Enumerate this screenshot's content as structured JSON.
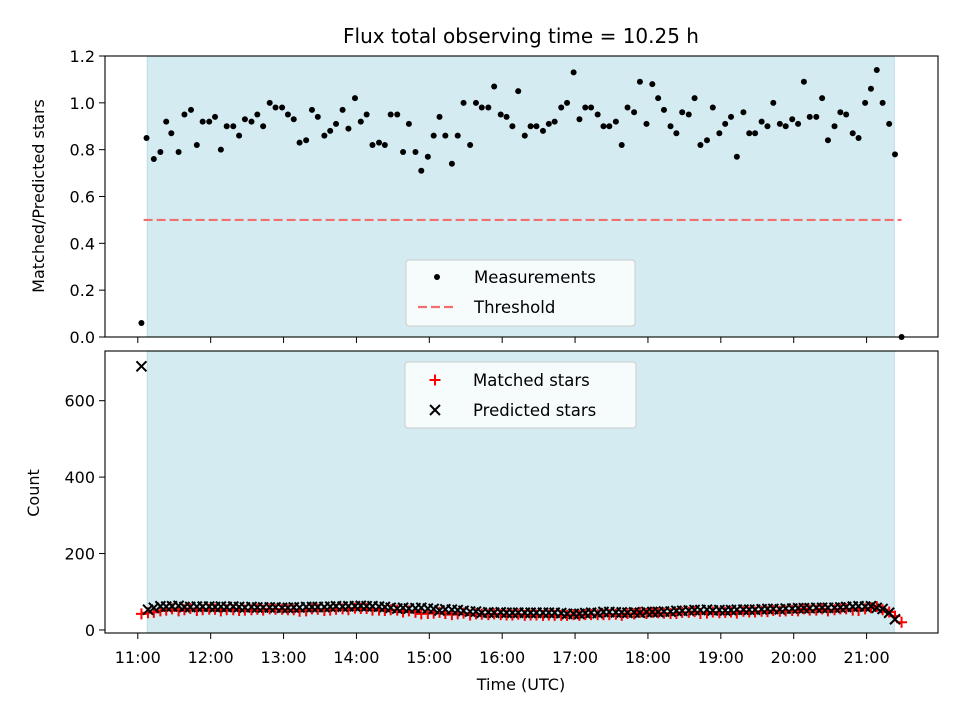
{
  "chart_data": {
    "type": "scatter",
    "title": "Flux total observing time = 10.25 h",
    "xlabel": "Time (UTC)",
    "x_ticks": [
      "11:00",
      "12:00",
      "13:00",
      "14:00",
      "15:00",
      "16:00",
      "17:00",
      "18:00",
      "19:00",
      "20:00",
      "21:00"
    ],
    "x_range_hours": [
      10.55,
      21.98
    ],
    "observing_window_hours": [
      11.13,
      21.38
    ],
    "shade_color": "#d3ebf1",
    "top_panel": {
      "ylabel": "Matched/Predicted stars",
      "ylim": [
        0,
        1.2
      ],
      "y_ticks": [
        "0.0",
        "0.2",
        "0.4",
        "0.6",
        "0.8",
        "1.0",
        "1.2"
      ],
      "threshold": {
        "name": "Threshold",
        "value": 0.5,
        "color": "#f07070",
        "x_range_hours": [
          11.08,
          21.48
        ]
      },
      "legend": {
        "placement": "lower-center",
        "entries": [
          "Measurements",
          "Threshold"
        ]
      },
      "measurements": {
        "name": "Measurements",
        "color": "#000000",
        "x_hours": [
          11.05,
          11.12,
          11.22,
          11.31,
          11.39,
          11.46,
          11.56,
          11.64,
          11.73,
          11.81,
          11.89,
          11.98,
          12.06,
          12.14,
          12.22,
          12.31,
          12.39,
          12.47,
          12.56,
          12.64,
          12.72,
          12.81,
          12.89,
          12.98,
          13.06,
          13.14,
          13.22,
          13.31,
          13.39,
          13.47,
          13.56,
          13.64,
          13.72,
          13.81,
          13.89,
          13.98,
          14.06,
          14.14,
          14.22,
          14.31,
          14.39,
          14.47,
          14.56,
          14.64,
          14.72,
          14.81,
          14.89,
          14.98,
          15.06,
          15.14,
          15.22,
          15.31,
          15.39,
          15.47,
          15.56,
          15.64,
          15.72,
          15.81,
          15.89,
          15.98,
          16.06,
          16.14,
          16.22,
          16.31,
          16.39,
          16.47,
          16.56,
          16.64,
          16.72,
          16.81,
          16.89,
          16.98,
          17.06,
          17.14,
          17.22,
          17.31,
          17.39,
          17.47,
          17.56,
          17.64,
          17.72,
          17.81,
          17.89,
          17.98,
          18.06,
          18.14,
          18.22,
          18.31,
          18.39,
          18.47,
          18.56,
          18.64,
          18.72,
          18.81,
          18.89,
          18.98,
          19.06,
          19.14,
          19.22,
          19.31,
          19.39,
          19.47,
          19.56,
          19.64,
          19.72,
          19.81,
          19.89,
          19.98,
          20.06,
          20.14,
          20.22,
          20.31,
          20.39,
          20.47,
          20.56,
          20.64,
          20.72,
          20.81,
          20.89,
          20.98,
          21.06,
          21.14,
          21.22,
          21.31,
          21.39,
          21.48
        ],
        "y": [
          0.06,
          0.85,
          0.76,
          0.79,
          0.92,
          0.87,
          0.79,
          0.95,
          0.97,
          0.82,
          0.92,
          0.92,
          0.94,
          0.8,
          0.9,
          0.9,
          0.86,
          0.93,
          0.92,
          0.95,
          0.9,
          1.0,
          0.98,
          0.98,
          0.95,
          0.93,
          0.83,
          0.84,
          0.97,
          0.94,
          0.86,
          0.88,
          0.91,
          0.97,
          0.89,
          1.02,
          0.92,
          0.95,
          0.82,
          0.83,
          0.82,
          0.95,
          0.95,
          0.79,
          0.91,
          0.79,
          0.71,
          0.77,
          0.86,
          0.94,
          0.86,
          0.74,
          0.86,
          1.0,
          0.82,
          1.0,
          0.98,
          0.98,
          1.07,
          0.95,
          0.94,
          0.9,
          1.05,
          0.86,
          0.9,
          0.9,
          0.88,
          0.91,
          0.92,
          0.98,
          1.0,
          1.13,
          0.93,
          0.98,
          0.98,
          0.95,
          0.9,
          0.9,
          0.92,
          0.82,
          0.98,
          0.96,
          1.09,
          0.91,
          1.08,
          1.02,
          0.97,
          0.9,
          0.87,
          0.96,
          0.95,
          1.02,
          0.82,
          0.84,
          0.98,
          0.87,
          0.91,
          0.94,
          0.77,
          0.96,
          0.87,
          0.87,
          0.92,
          0.9,
          1.0,
          0.91,
          0.9,
          0.93,
          0.91,
          1.09,
          0.94,
          0.94,
          1.02,
          0.84,
          0.9,
          0.96,
          0.95,
          0.87,
          0.85,
          1.0,
          1.06,
          1.14,
          1.0,
          0.91,
          0.78,
          0.0
        ]
      }
    },
    "bottom_panel": {
      "ylabel": "Count",
      "ylim": [
        -8,
        730
      ],
      "y_ticks": [
        "0",
        "200",
        "400",
        "600"
      ],
      "y_tick_values": [
        0,
        200,
        400,
        600
      ],
      "legend": {
        "placement": "upper-center",
        "entries": [
          "Matched stars",
          "Predicted stars"
        ]
      },
      "matched": {
        "name": "Matched stars",
        "color": "#ff0000",
        "x_hours": [
          11.05,
          11.14,
          11.22,
          11.31,
          11.39,
          11.47,
          11.56,
          11.64,
          11.72,
          11.81,
          11.89,
          11.98,
          12.06,
          12.14,
          12.22,
          12.31,
          12.39,
          12.47,
          12.56,
          12.64,
          12.72,
          12.81,
          12.89,
          12.98,
          13.06,
          13.14,
          13.22,
          13.31,
          13.39,
          13.47,
          13.56,
          13.64,
          13.72,
          13.81,
          13.89,
          13.98,
          14.06,
          14.14,
          14.22,
          14.31,
          14.39,
          14.47,
          14.56,
          14.64,
          14.72,
          14.81,
          14.89,
          14.98,
          15.06,
          15.14,
          15.22,
          15.31,
          15.39,
          15.47,
          15.56,
          15.64,
          15.72,
          15.81,
          15.89,
          15.98,
          16.06,
          16.14,
          16.22,
          16.31,
          16.39,
          16.47,
          16.56,
          16.64,
          16.72,
          16.81,
          16.89,
          16.98,
          17.06,
          17.14,
          17.22,
          17.31,
          17.39,
          17.47,
          17.56,
          17.64,
          17.72,
          17.81,
          17.89,
          17.98,
          18.06,
          18.14,
          18.22,
          18.31,
          18.39,
          18.47,
          18.56,
          18.64,
          18.72,
          18.81,
          18.89,
          18.98,
          19.06,
          19.14,
          19.22,
          19.31,
          19.39,
          19.47,
          19.56,
          19.64,
          19.72,
          19.81,
          19.89,
          19.98,
          20.06,
          20.14,
          20.22,
          20.31,
          20.39,
          20.47,
          20.56,
          20.64,
          20.72,
          20.81,
          20.89,
          20.98,
          21.06,
          21.14,
          21.22,
          21.31,
          21.39,
          21.48
        ],
        "y": [
          42,
          45,
          46,
          50,
          52,
          55,
          50,
          53,
          56,
          51,
          53,
          54,
          54,
          50,
          53,
          53,
          51,
          52,
          53,
          54,
          52,
          55,
          54,
          54,
          53,
          53,
          49,
          50,
          55,
          54,
          51,
          52,
          54,
          55,
          53,
          57,
          56,
          56,
          52,
          52,
          51,
          53,
          52,
          47,
          50,
          46,
          42,
          43,
          44,
          46,
          43,
          40,
          42,
          44,
          39,
          42,
          41,
          40,
          42,
          40,
          39,
          39,
          41,
          38,
          39,
          39,
          38,
          39,
          38,
          38,
          38,
          40,
          38,
          40,
          40,
          40,
          40,
          40,
          41,
          38,
          43,
          42,
          46,
          43,
          46,
          45,
          44,
          43,
          43,
          46,
          46,
          48,
          43,
          44,
          47,
          45,
          46,
          47,
          44,
          49,
          47,
          47,
          49,
          48,
          51,
          49,
          50,
          51,
          50,
          55,
          52,
          52,
          55,
          50,
          53,
          55,
          55,
          52,
          51,
          55,
          58,
          61,
          53,
          47,
          36,
          20
        ]
      },
      "predicted": {
        "name": "Predicted stars",
        "color": "#000000",
        "x_hours": [
          11.05,
          11.14,
          11.22,
          11.31,
          11.39,
          11.47,
          11.56,
          11.64,
          11.72,
          11.81,
          11.89,
          11.98,
          12.06,
          12.14,
          12.22,
          12.31,
          12.39,
          12.47,
          12.56,
          12.64,
          12.72,
          12.81,
          12.89,
          12.98,
          13.06,
          13.14,
          13.22,
          13.31,
          13.39,
          13.47,
          13.56,
          13.64,
          13.72,
          13.81,
          13.89,
          13.98,
          14.06,
          14.14,
          14.22,
          14.31,
          14.39,
          14.47,
          14.56,
          14.64,
          14.72,
          14.81,
          14.89,
          14.98,
          15.06,
          15.14,
          15.22,
          15.31,
          15.39,
          15.47,
          15.56,
          15.64,
          15.72,
          15.81,
          15.89,
          15.98,
          16.06,
          16.14,
          16.22,
          16.31,
          16.39,
          16.47,
          16.56,
          16.64,
          16.72,
          16.81,
          16.89,
          16.98,
          17.06,
          17.14,
          17.22,
          17.31,
          17.39,
          17.47,
          17.56,
          17.64,
          17.72,
          17.81,
          17.89,
          17.98,
          18.06,
          18.14,
          18.22,
          18.31,
          18.39,
          18.47,
          18.56,
          18.64,
          18.72,
          18.81,
          18.89,
          18.98,
          19.06,
          19.14,
          19.22,
          19.31,
          19.39,
          19.47,
          19.56,
          19.64,
          19.72,
          19.81,
          19.89,
          19.98,
          20.06,
          20.14,
          20.22,
          20.31,
          20.39,
          20.47,
          20.56,
          20.64,
          20.72,
          20.81,
          20.89,
          20.98,
          21.06,
          21.14,
          21.22,
          21.31,
          21.39
        ],
        "y": [
          690,
          53,
          58,
          62,
          61,
          62,
          63,
          60,
          60,
          61,
          61,
          61,
          60,
          61,
          60,
          61,
          60,
          59,
          60,
          59,
          59,
          59,
          59,
          58,
          58,
          59,
          59,
          60,
          60,
          60,
          60,
          61,
          62,
          61,
          62,
          62,
          63,
          62,
          62,
          61,
          60,
          58,
          56,
          58,
          56,
          57,
          58,
          56,
          55,
          51,
          54,
          53,
          52,
          50,
          48,
          48,
          45,
          46,
          45,
          46,
          45,
          45,
          45,
          45,
          45,
          45,
          45,
          45,
          45,
          44,
          42,
          42,
          42,
          44,
          45,
          44,
          47,
          47,
          46,
          46,
          45,
          46,
          45,
          47,
          47,
          47,
          48,
          48,
          50,
          50,
          51,
          52,
          52,
          53,
          51,
          52,
          51,
          52,
          53,
          53,
          53,
          53,
          54,
          55,
          55,
          54,
          56,
          56,
          57,
          57,
          57,
          58,
          58,
          58,
          58,
          59,
          60,
          61,
          62,
          61,
          62,
          58,
          55,
          45,
          28
        ]
      }
    }
  }
}
